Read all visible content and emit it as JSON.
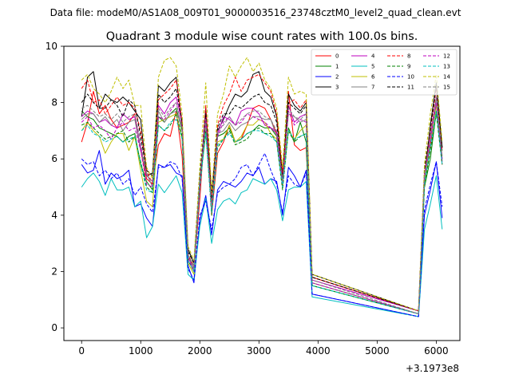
{
  "figure": {
    "suptitle": "Data file: modeM0/AS1A08_009T01_9000003516_23748cztM0_level2_quad_clean.evt",
    "title": "Quadrant 3 module wise count rates with 100.0s bins.",
    "x_offset_label": "+3.1973e8"
  },
  "chart_data": {
    "type": "line",
    "title": "Quadrant 3 module wise count rates with 100.0s bins.",
    "xlabel": "",
    "ylabel": "",
    "x_offset": 319730000,
    "xlim": [
      -300,
      6400
    ],
    "ylim": [
      -0.45,
      10.0
    ],
    "xticks": [
      0,
      1000,
      2000,
      3000,
      4000,
      5000,
      6000
    ],
    "xtick_labels": [
      "0",
      "1000",
      "2000",
      "3000",
      "4000",
      "5000",
      "6000"
    ],
    "yticks": [
      0,
      2,
      4,
      6,
      8,
      10
    ],
    "ytick_labels": [
      "0",
      "2",
      "4",
      "6",
      "8",
      "10"
    ],
    "grid": false,
    "legend_position": "top-right",
    "legend_columns": 4,
    "x": [
      0,
      100,
      200,
      300,
      400,
      500,
      600,
      700,
      800,
      900,
      1000,
      1100,
      1200,
      1300,
      1400,
      1500,
      1600,
      1700,
      1800,
      1900,
      2000,
      2100,
      2200,
      2300,
      2400,
      2500,
      2600,
      2700,
      2800,
      2900,
      3000,
      3100,
      3200,
      3300,
      3400,
      3500,
      3600,
      3700,
      3800,
      3900,
      5700,
      5800,
      5900,
      6000,
      6100
    ],
    "series": [
      {
        "name": "0",
        "color": "#ff0000",
        "dash": "solid",
        "values": [
          6.6,
          7.3,
          8.4,
          7.6,
          7.9,
          7.4,
          7.1,
          7.2,
          7.3,
          7.6,
          6.3,
          5.3,
          5.1,
          6.5,
          6.9,
          6.8,
          7.7,
          6.1,
          2.4,
          2.0,
          4.6,
          7.6,
          4.0,
          6.2,
          6.6,
          7.2,
          6.6,
          6.7,
          7.2,
          7.8,
          7.9,
          7.8,
          7.4,
          6.9,
          5.0,
          8.4,
          6.5,
          6.3,
          6.4,
          1.8,
          0.6,
          5.2,
          6.4,
          8.1,
          5.8
        ]
      },
      {
        "name": "1",
        "color": "#008000",
        "dash": "solid",
        "values": [
          7.7,
          7.5,
          7.4,
          7.1,
          7.0,
          6.9,
          6.8,
          6.6,
          6.8,
          6.9,
          5.8,
          5.2,
          4.9,
          7.5,
          7.3,
          7.6,
          7.8,
          7.0,
          2.6,
          2.1,
          5.4,
          7.2,
          4.2,
          6.8,
          6.9,
          7.1,
          6.6,
          6.7,
          6.9,
          7.0,
          7.2,
          7.1,
          7.1,
          6.8,
          5.1,
          7.1,
          6.6,
          7.3,
          6.6,
          1.5,
          0.5,
          5.0,
          6.0,
          7.7,
          6.3
        ]
      },
      {
        "name": "2",
        "color": "#0000ff",
        "dash": "solid",
        "values": [
          5.8,
          5.5,
          5.6,
          6.3,
          5.1,
          5.5,
          5.3,
          5.4,
          5.6,
          4.3,
          4.4,
          3.9,
          3.6,
          5.8,
          5.7,
          5.8,
          5.5,
          5.4,
          2.2,
          1.6,
          3.8,
          4.7,
          3.3,
          4.9,
          5.2,
          5.1,
          5.0,
          5.2,
          5.5,
          5.4,
          5.7,
          5.1,
          5.3,
          5.2,
          4.0,
          5.7,
          5.4,
          5.0,
          5.6,
          1.2,
          0.4,
          4.0,
          4.9,
          5.9,
          3.9
        ]
      },
      {
        "name": "3",
        "color": "#000000",
        "dash": "solid",
        "values": [
          7.5,
          8.9,
          9.1,
          7.8,
          8.3,
          8.1,
          8.0,
          8.2,
          8.0,
          7.7,
          7.4,
          5.4,
          5.5,
          8.6,
          8.4,
          8.7,
          8.9,
          7.2,
          2.8,
          2.3,
          5.0,
          7.8,
          4.8,
          7.0,
          7.4,
          7.9,
          8.3,
          8.2,
          8.4,
          9.0,
          9.1,
          8.4,
          8.2,
          7.5,
          5.4,
          8.3,
          7.9,
          7.7,
          8.0,
          1.9,
          0.6,
          5.3,
          7.2,
          8.7,
          6.4
        ]
      },
      {
        "name": "4",
        "color": "#bf00bf",
        "dash": "solid",
        "values": [
          7.5,
          7.7,
          7.6,
          7.3,
          7.4,
          7.2,
          7.1,
          7.6,
          7.4,
          7.5,
          6.4,
          5.4,
          5.2,
          7.9,
          7.6,
          8.0,
          8.2,
          7.3,
          2.5,
          2.1,
          5.0,
          7.6,
          4.3,
          6.9,
          7.5,
          7.4,
          7.2,
          7.7,
          7.8,
          7.8,
          7.6,
          7.2,
          7.1,
          7.0,
          5.3,
          7.9,
          7.3,
          7.5,
          7.6,
          1.7,
          0.6,
          5.4,
          6.8,
          8.2,
          5.9
        ]
      },
      {
        "name": "5",
        "color": "#00bfbf",
        "dash": "solid",
        "values": [
          5.0,
          5.3,
          5.5,
          5.2,
          4.7,
          5.3,
          4.9,
          4.9,
          5.0,
          4.3,
          4.5,
          3.2,
          3.6,
          5.1,
          4.8,
          5.1,
          5.4,
          4.8,
          1.9,
          1.7,
          3.6,
          4.6,
          3.0,
          4.2,
          4.5,
          4.6,
          4.4,
          4.8,
          4.9,
          5.3,
          5.2,
          5.1,
          5.3,
          4.9,
          3.8,
          4.9,
          5.0,
          5.0,
          5.2,
          1.1,
          0.4,
          3.5,
          4.4,
          5.4,
          3.5
        ]
      },
      {
        "name": "6",
        "color": "#bfbf00",
        "dash": "solid",
        "values": [
          7.0,
          7.3,
          7.0,
          6.8,
          6.2,
          6.6,
          6.9,
          6.9,
          6.3,
          6.8,
          5.6,
          4.5,
          4.3,
          7.3,
          7.4,
          7.5,
          7.6,
          6.7,
          2.3,
          1.9,
          5.2,
          6.9,
          4.3,
          6.6,
          6.7,
          7.2,
          6.6,
          6.8,
          7.2,
          7.2,
          7.4,
          7.3,
          6.9,
          6.7,
          5.1,
          7.0,
          6.7,
          7.0,
          7.2,
          1.6,
          0.5,
          5.1,
          6.6,
          7.9,
          6.1
        ]
      },
      {
        "name": "7",
        "color": "#808080",
        "dash": "solid",
        "values": [
          7.4,
          7.6,
          7.6,
          7.3,
          7.5,
          7.2,
          7.4,
          7.0,
          7.3,
          7.4,
          6.3,
          5.5,
          5.0,
          7.7,
          7.3,
          7.6,
          7.7,
          7.1,
          2.6,
          2.1,
          5.3,
          7.2,
          4.2,
          6.9,
          7.0,
          7.3,
          7.0,
          7.2,
          7.3,
          7.5,
          7.5,
          7.4,
          7.4,
          6.8,
          5.2,
          7.6,
          7.5,
          7.3,
          7.4,
          1.6,
          0.5,
          5.3,
          6.6,
          8.1,
          6.0
        ]
      },
      {
        "name": "8",
        "color": "#ff0000",
        "dash": "dashed",
        "values": [
          8.5,
          8.8,
          8.0,
          8.1,
          7.6,
          7.9,
          8.2,
          7.9,
          8.0,
          7.8,
          7.0,
          5.6,
          5.1,
          8.1,
          8.3,
          8.5,
          8.8,
          7.3,
          2.6,
          2.2,
          5.2,
          7.9,
          4.5,
          7.2,
          7.9,
          8.3,
          8.9,
          8.4,
          8.8,
          8.9,
          9.0,
          8.7,
          8.4,
          7.6,
          5.5,
          8.0,
          8.1,
          7.8,
          8.1,
          1.8,
          0.6,
          5.6,
          7.0,
          8.5,
          6.3
        ]
      },
      {
        "name": "9",
        "color": "#008000",
        "dash": "dashed",
        "values": [
          7.2,
          7.3,
          7.1,
          6.9,
          6.7,
          6.8,
          6.9,
          7.0,
          6.6,
          6.8,
          5.9,
          5.0,
          4.8,
          7.2,
          7.0,
          7.2,
          7.6,
          6.8,
          2.4,
          2.0,
          5.1,
          7.0,
          4.0,
          6.4,
          6.7,
          7.0,
          6.5,
          6.6,
          6.7,
          7.0,
          7.1,
          6.9,
          6.9,
          6.6,
          4.9,
          7.0,
          6.6,
          6.8,
          6.9,
          1.5,
          0.5,
          5.0,
          6.3,
          7.6,
          5.8
        ]
      },
      {
        "name": "10",
        "color": "#0000ff",
        "dash": "dashed",
        "values": [
          6.0,
          5.8,
          5.9,
          5.4,
          5.6,
          5.3,
          5.5,
          5.1,
          5.3,
          4.7,
          5.0,
          4.4,
          4.1,
          5.7,
          5.7,
          5.9,
          5.8,
          5.3,
          2.1,
          1.7,
          4.0,
          4.5,
          3.5,
          4.8,
          5.0,
          5.1,
          5.3,
          5.7,
          5.8,
          5.4,
          5.8,
          6.2,
          5.6,
          5.1,
          4.1,
          5.4,
          5.1,
          5.0,
          5.5,
          1.2,
          0.4,
          4.2,
          5.1,
          5.9,
          4.3
        ]
      },
      {
        "name": "11",
        "color": "#000000",
        "dash": "dashed",
        "values": [
          8.0,
          8.3,
          8.0,
          7.8,
          7.8,
          8.1,
          7.9,
          7.5,
          8.1,
          7.9,
          6.8,
          5.6,
          5.4,
          8.3,
          8.0,
          8.2,
          8.5,
          7.3,
          2.7,
          2.3,
          5.4,
          7.6,
          4.5,
          7.1,
          7.6,
          7.6,
          7.9,
          7.8,
          8.0,
          8.2,
          8.3,
          8.0,
          7.9,
          7.3,
          5.3,
          8.0,
          7.8,
          7.6,
          7.9,
          1.8,
          0.6,
          5.6,
          7.1,
          8.6,
          6.4
        ]
      },
      {
        "name": "12",
        "color": "#bf00bf",
        "dash": "dashed",
        "values": [
          7.3,
          7.5,
          7.1,
          7.2,
          7.0,
          6.7,
          7.1,
          7.3,
          7.0,
          7.1,
          6.3,
          5.1,
          5.0,
          7.5,
          7.4,
          7.7,
          8.0,
          7.1,
          2.5,
          2.0,
          5.2,
          7.4,
          4.2,
          6.8,
          7.3,
          7.5,
          7.2,
          7.3,
          7.6,
          7.5,
          7.4,
          7.3,
          7.1,
          6.9,
          5.1,
          7.7,
          7.2,
          7.4,
          7.3,
          1.6,
          0.5,
          5.4,
          6.7,
          8.0,
          6.0
        ]
      },
      {
        "name": "13",
        "color": "#00bfbf",
        "dash": "dashed",
        "values": [
          7.0,
          7.2,
          6.9,
          6.8,
          6.6,
          6.7,
          6.8,
          6.6,
          6.7,
          6.8,
          5.8,
          4.9,
          4.8,
          7.2,
          7.0,
          7.3,
          7.4,
          6.7,
          2.4,
          2.0,
          5.0,
          6.9,
          4.1,
          6.5,
          6.7,
          6.9,
          6.6,
          6.7,
          6.9,
          7.0,
          7.0,
          6.9,
          6.8,
          6.6,
          5.0,
          7.0,
          6.7,
          6.8,
          6.9,
          1.5,
          0.5,
          5.1,
          6.4,
          7.7,
          5.8
        ]
      },
      {
        "name": "14",
        "color": "#bfbf00",
        "dash": "dashed",
        "values": [
          8.8,
          9.0,
          8.5,
          8.3,
          8.0,
          8.4,
          8.9,
          8.5,
          8.8,
          7.9,
          7.9,
          5.7,
          5.3,
          8.9,
          9.5,
          9.6,
          9.3,
          7.6,
          2.9,
          2.4,
          5.7,
          8.7,
          4.8,
          7.6,
          8.3,
          9.3,
          8.9,
          9.3,
          9.6,
          9.1,
          9.4,
          8.8,
          8.5,
          7.8,
          5.7,
          8.9,
          8.3,
          8.4,
          8.3,
          1.9,
          0.6,
          5.8,
          7.6,
          9.0,
          6.6
        ]
      },
      {
        "name": "15",
        "color": "#808080",
        "dash": "dashed",
        "values": [
          7.8,
          7.9,
          7.7,
          7.5,
          7.6,
          7.4,
          7.6,
          7.3,
          7.5,
          7.6,
          6.6,
          5.4,
          5.2,
          7.8,
          7.5,
          7.8,
          8.0,
          7.1,
          2.6,
          2.2,
          5.3,
          7.4,
          4.3,
          7.0,
          7.2,
          7.5,
          7.2,
          7.4,
          7.6,
          7.7,
          7.7,
          7.5,
          7.4,
          7.0,
          5.2,
          7.8,
          7.5,
          7.4,
          7.6,
          1.7,
          0.5,
          5.4,
          6.8,
          8.2,
          6.1
        ]
      }
    ]
  }
}
